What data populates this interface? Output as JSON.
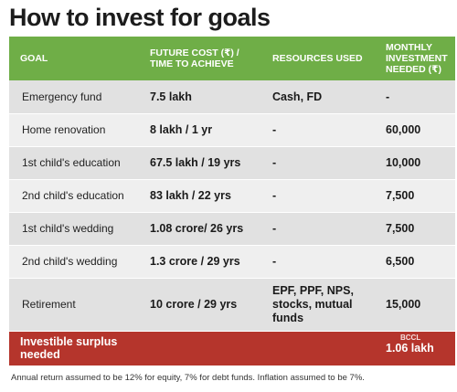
{
  "title": "How to invest for goals",
  "headers": {
    "goal": "GOAL",
    "future_cost": "FUTURE COST (₹) / TIME TO ACHIEVE",
    "resources": "RESOURCES USED",
    "monthly": "MONTHLY INVESTMENT NEEDED (₹)"
  },
  "rows": [
    {
      "goal": "Emergency fund",
      "cost": "7.5 lakh",
      "resources": "Cash, FD",
      "monthly": "-"
    },
    {
      "goal": "Home renovation",
      "cost": "8 lakh / 1 yr",
      "resources": "-",
      "monthly": "60,000"
    },
    {
      "goal": "1st child's education",
      "cost": "67.5 lakh / 19 yrs",
      "resources": "-",
      "monthly": "10,000"
    },
    {
      "goal": "2nd child's education",
      "cost": "83 lakh / 22 yrs",
      "resources": "-",
      "monthly": "7,500"
    },
    {
      "goal": "1st child's wedding",
      "cost": "1.08 crore/ 26 yrs",
      "resources": "-",
      "monthly": "7,500"
    },
    {
      "goal": "2nd child's wedding",
      "cost": "1.3 crore / 29 yrs",
      "resources": "-",
      "monthly": "6,500"
    },
    {
      "goal": "Retirement",
      "cost": "10 crore / 29 yrs",
      "resources": "EPF, PPF, NPS, stocks, mutual funds",
      "monthly": "15,000"
    }
  ],
  "footer": {
    "label": "Investible surplus needed",
    "value": "1.06 lakh"
  },
  "watermark": "BCCL",
  "note": "Annual return assumed to be 12% for equity, 7% for debt funds. Inflation assumed to be 7%."
}
